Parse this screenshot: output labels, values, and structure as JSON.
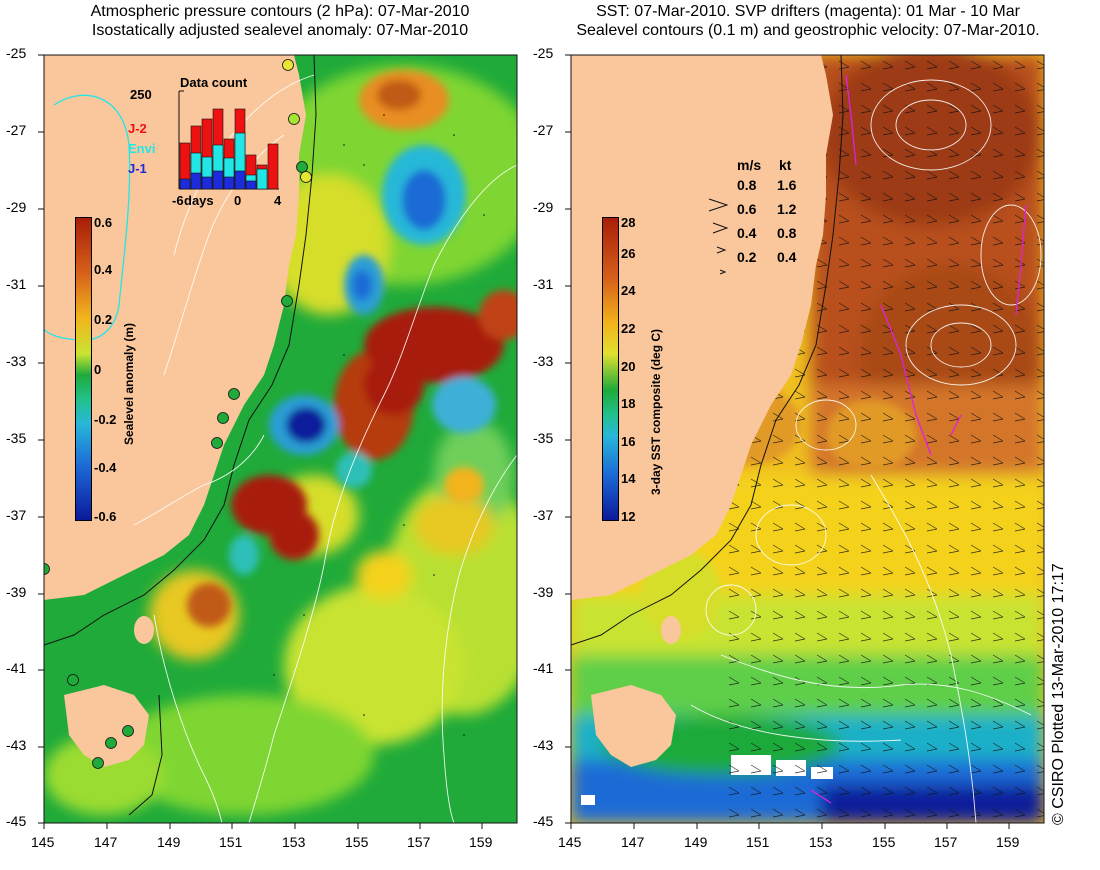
{
  "left_panel": {
    "title_line1": "Atmospheric pressure contours (2 hPa): 07-Mar-2010",
    "title_line2": "Isostatically adjusted sealevel anomaly: 07-Mar-2010",
    "colorbar": {
      "label": "Sealevel anomaly (m)",
      "ticks": [
        "0.6",
        "0.4",
        "0.2",
        "0",
        "-0.2",
        "-0.4",
        "-0.6"
      ]
    },
    "inset": {
      "title": "Data count",
      "ymax_label": "250",
      "x_ticks": [
        "-6",
        "days",
        "0",
        "4"
      ],
      "legend": [
        {
          "name": "J-2",
          "color": "#ee1111"
        },
        {
          "name": "Envi",
          "color": "#22e6e6"
        },
        {
          "name": "J-1",
          "color": "#1c2bdc"
        }
      ]
    }
  },
  "right_panel": {
    "title_line1": "SST: 07-Mar-2010. SVP drifters (magenta): 01 Mar - 10 Mar",
    "title_line2": "Sealevel contours (0.1 m) and geostrophic velocity: 07-Mar-2010.",
    "colorbar": {
      "label": "3-day SST composite (deg C)",
      "ticks": [
        "28",
        "26",
        "24",
        "22",
        "20",
        "18",
        "16",
        "14",
        "12"
      ]
    },
    "velocity_legend": {
      "header_ms": "m/s",
      "header_kt": "kt",
      "rows": [
        {
          "ms": "0.8",
          "kt": "1.6"
        },
        {
          "ms": "0.6",
          "kt": "1.2"
        },
        {
          "ms": "0.4",
          "kt": "0.8"
        },
        {
          "ms": "0.2",
          "kt": "0.4"
        }
      ]
    }
  },
  "axes": {
    "lat_ticks": [
      "-25",
      "-27",
      "-29",
      "-31",
      "-33",
      "-35",
      "-37",
      "-39",
      "-41",
      "-43",
      "-45"
    ],
    "lon_ticks": [
      "145",
      "147",
      "149",
      "151",
      "153",
      "155",
      "157",
      "159"
    ]
  },
  "credit": "© CSIRO Plotted 13-Mar-2010 17:17",
  "colors": {
    "land": "#fac79d",
    "ocean_base_left": "#1faa3a",
    "ocean_base_right": "#f0c020",
    "anomaly_high": "#a81e08",
    "anomaly_low": "#0c1a9a"
  }
}
